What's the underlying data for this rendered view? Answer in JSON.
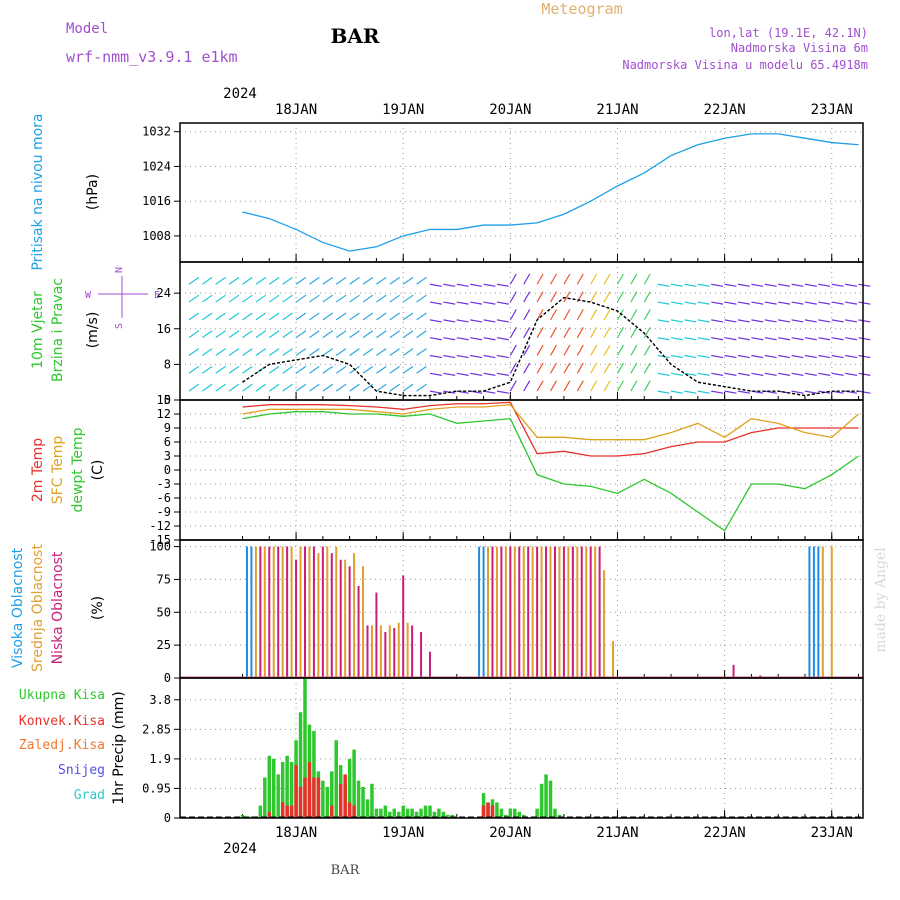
{
  "header": {
    "model_label": "Model",
    "model_name": "wrf-nmm_v3.9.1  e1km",
    "station": "BAR",
    "title": "Meteogram",
    "lonlat": "lon,lat (19.1E, 42.1N)",
    "elevation": "Nadmorska Visina 6m",
    "model_elevation": "Nadmorska Visina u modelu 65.4918m"
  },
  "footer": {
    "station": "BAR",
    "credit": "made by Angel"
  },
  "time_axis": {
    "year": "2024",
    "days": [
      "18JAN",
      "19JAN",
      "20JAN",
      "21JAN",
      "22JAN",
      "23JAN"
    ]
  },
  "colors": {
    "pressure": "#1ea0e6",
    "temp2m": "#e6322a",
    "sfc": "#e0a020",
    "dew": "#2ec82e",
    "high": "#1e8ce6",
    "mid": "#e0a030",
    "low": "#c81e78",
    "precip_total": "#2ec82e",
    "precip_conv": "#e6322a",
    "purple": "#a050d0"
  },
  "labels": {
    "p1": {
      "name": "Pritisak na nivou mora",
      "unit": "(hPa)"
    },
    "p2": {
      "line1": "10m Vjetar",
      "line2": "Brzina i Pravac",
      "unit": "(m/s)",
      "compass_n": "N",
      "compass_w": "W",
      "compass_e": "E",
      "compass_s": "S"
    },
    "p3": {
      "l1": "2m Temp",
      "l2": "SFC Temp",
      "l3": "dewpt Temp",
      "unit": "(C)"
    },
    "p4": {
      "l1": "Visoka Oblacnost",
      "l2": "Srednja Oblacnost",
      "l3": "Niska Oblacnost",
      "unit": "(%)"
    },
    "p5": {
      "unit": "1hr Precip (mm)",
      "leg1": "Ukupna Kisa",
      "leg2": "Konvek.Kisa",
      "leg3": "Zaledj.Kisa",
      "leg4": "Snijeg",
      "leg5": "Grad"
    }
  },
  "chart_data": [
    {
      "type": "line",
      "name": "Pritisak na nivou mora",
      "ylabel": "(hPa)",
      "ylim": [
        1002,
        1034
      ],
      "yticks": [
        "1008",
        "1016",
        "1024",
        "1032"
      ],
      "x_hours": [
        0,
        6,
        12,
        18,
        24,
        30,
        36,
        42,
        48,
        54,
        60,
        66,
        72,
        78,
        84,
        90,
        96,
        102,
        108,
        114,
        120,
        126,
        132,
        138
      ],
      "series": [
        {
          "values": [
            1013.5,
            1012,
            1009.5,
            1006.5,
            1004.5,
            1005.5,
            1008,
            1009.5,
            1009.5,
            1010.5,
            1010.5,
            1011,
            1013,
            1016,
            1019.5,
            1022.5,
            1026.5,
            1029,
            1030.5,
            1031.5,
            1031.5,
            1030.5,
            1029.5,
            1029
          ]
        }
      ]
    },
    {
      "type": "line",
      "name": "10m Vjetar",
      "ylabel": "(m/s)",
      "ylim": [
        0,
        31
      ],
      "yticks": [
        "0",
        "8",
        "16",
        "24"
      ],
      "x_hours": [
        0,
        6,
        12,
        18,
        24,
        30,
        36,
        42,
        48,
        54,
        60,
        66,
        72,
        78,
        84,
        90,
        96,
        102,
        108,
        114,
        120,
        126,
        132,
        138
      ],
      "series": [
        {
          "values": [
            4,
            8,
            9,
            10,
            8,
            2,
            1,
            1,
            2,
            2,
            4,
            18,
            23,
            22,
            20,
            15,
            8,
            4,
            3,
            2,
            2,
            1,
            2,
            2
          ]
        }
      ]
    },
    {
      "type": "line",
      "name": "Temperatures",
      "ylabel": "(C)",
      "ylim": [
        -15,
        15
      ],
      "yticks": [
        "15",
        "12",
        "9",
        "6",
        "3",
        "0",
        "-3",
        "-6",
        "-9",
        "-12",
        "-15"
      ],
      "x_hours": [
        0,
        6,
        12,
        18,
        24,
        30,
        36,
        42,
        48,
        54,
        60,
        66,
        72,
        78,
        84,
        90,
        96,
        102,
        108,
        114,
        120,
        126,
        132,
        138
      ],
      "series": [
        {
          "name": "2m Temp",
          "values": [
            13.5,
            14,
            14,
            14,
            13.8,
            13.5,
            13,
            13.8,
            14.2,
            14.2,
            14.5,
            3.5,
            4,
            3,
            3,
            3.5,
            5,
            6,
            6,
            8,
            9,
            9,
            9,
            9
          ]
        },
        {
          "name": "SFC Temp",
          "values": [
            12,
            13,
            13,
            13,
            13,
            12.5,
            12,
            13,
            13.5,
            13.5,
            14,
            7,
            7,
            6.5,
            6.5,
            6.5,
            8,
            10,
            7,
            11,
            10,
            8,
            7,
            12
          ]
        },
        {
          "name": "dewpt Temp",
          "values": [
            11,
            12,
            12.5,
            12.5,
            12,
            12,
            11.5,
            12,
            10,
            10.5,
            11,
            -1,
            -3,
            -3.5,
            -5,
            -2,
            -5,
            -9,
            -13,
            -3,
            -3,
            -4,
            -1,
            3
          ]
        }
      ]
    },
    {
      "type": "bar",
      "name": "Oblacnost",
      "ylabel": "(%)",
      "ylim": [
        0,
        105
      ],
      "yticks": [
        "0",
        "25",
        "50",
        "75",
        "100"
      ],
      "series": [
        {
          "name": "Visoka Oblacnost",
          "values": [
            [
              1,
              100
            ],
            [
              2,
              100
            ],
            [
              53,
              100
            ],
            [
              54,
              100
            ],
            [
              127,
              100
            ],
            [
              128,
              100
            ],
            [
              129,
              100
            ]
          ]
        },
        {
          "name": "Srednja Oblacnost",
          "values": [
            [
              3,
              100
            ],
            [
              5,
              100
            ],
            [
              7,
              100
            ],
            [
              9,
              100
            ],
            [
              11,
              100
            ],
            [
              13,
              100
            ],
            [
              15,
              100
            ],
            [
              17,
              95
            ],
            [
              19,
              100
            ],
            [
              21,
              100
            ],
            [
              23,
              90
            ],
            [
              25,
              95
            ],
            [
              27,
              85
            ],
            [
              29,
              40
            ],
            [
              31,
              40
            ],
            [
              33,
              40
            ],
            [
              35,
              42
            ],
            [
              37,
              42
            ],
            [
              55,
              100
            ],
            [
              57,
              100
            ],
            [
              59,
              100
            ],
            [
              61,
              100
            ],
            [
              63,
              100
            ],
            [
              65,
              100
            ],
            [
              67,
              100
            ],
            [
              69,
              100
            ],
            [
              71,
              100
            ],
            [
              73,
              100
            ],
            [
              75,
              100
            ],
            [
              77,
              100
            ],
            [
              79,
              100
            ],
            [
              81,
              82
            ],
            [
              83,
              28
            ],
            [
              130,
              100
            ],
            [
              132,
              100
            ]
          ]
        },
        {
          "name": "Niska Oblacnost",
          "values": [
            [
              4,
              100
            ],
            [
              6,
              100
            ],
            [
              8,
              100
            ],
            [
              10,
              100
            ],
            [
              12,
              90
            ],
            [
              14,
              100
            ],
            [
              16,
              100
            ],
            [
              18,
              100
            ],
            [
              20,
              95
            ],
            [
              22,
              90
            ],
            [
              24,
              85
            ],
            [
              26,
              70
            ],
            [
              28,
              40
            ],
            [
              30,
              65
            ],
            [
              32,
              35
            ],
            [
              34,
              38
            ],
            [
              36,
              78
            ],
            [
              38,
              40
            ],
            [
              40,
              35
            ],
            [
              42,
              20
            ],
            [
              56,
              100
            ],
            [
              58,
              100
            ],
            [
              60,
              100
            ],
            [
              62,
              100
            ],
            [
              64,
              100
            ],
            [
              66,
              100
            ],
            [
              68,
              100
            ],
            [
              70,
              100
            ],
            [
              72,
              100
            ],
            [
              74,
              100
            ],
            [
              76,
              100
            ],
            [
              78,
              100
            ],
            [
              80,
              100
            ],
            [
              110,
              10
            ],
            [
              116,
              2
            ]
          ]
        }
      ]
    },
    {
      "type": "bar",
      "name": "1hr Precip",
      "ylabel": "1hr Precip (mm)",
      "ylim": [
        0,
        4.5
      ],
      "yticks": [
        "0",
        "0.95",
        "1.9",
        "2.85",
        "3.8"
      ],
      "series": [
        {
          "name": "Ukupna Kisa",
          "values": [
            [
              0,
              0.1
            ],
            [
              2,
              0.05
            ],
            [
              4,
              0.4
            ],
            [
              5,
              1.3
            ],
            [
              6,
              2.0
            ],
            [
              7,
              1.9
            ],
            [
              8,
              1.4
            ],
            [
              9,
              1.8
            ],
            [
              10,
              2.0
            ],
            [
              11,
              1.8
            ],
            [
              12,
              2.5
            ],
            [
              13,
              3.4
            ],
            [
              14,
              4.5
            ],
            [
              15,
              3.0
            ],
            [
              16,
              2.8
            ],
            [
              17,
              1.5
            ],
            [
              18,
              1.2
            ],
            [
              19,
              1.0
            ],
            [
              20,
              1.5
            ],
            [
              21,
              2.5
            ],
            [
              22,
              1.7
            ],
            [
              23,
              1.1
            ],
            [
              24,
              1.9
            ],
            [
              25,
              2.2
            ],
            [
              26,
              1.2
            ],
            [
              27,
              1.0
            ],
            [
              28,
              0.6
            ],
            [
              29,
              1.1
            ],
            [
              30,
              0.3
            ],
            [
              31,
              0.3
            ],
            [
              32,
              0.4
            ],
            [
              33,
              0.2
            ],
            [
              34,
              0.3
            ],
            [
              35,
              0.2
            ],
            [
              36,
              0.4
            ],
            [
              37,
              0.3
            ],
            [
              38,
              0.3
            ],
            [
              39,
              0.2
            ],
            [
              40,
              0.3
            ],
            [
              41,
              0.4
            ],
            [
              42,
              0.4
            ],
            [
              43,
              0.2
            ],
            [
              44,
              0.3
            ],
            [
              45,
              0.2
            ],
            [
              46,
              0.1
            ],
            [
              47,
              0.1
            ],
            [
              54,
              0.8
            ],
            [
              55,
              0.5
            ],
            [
              56,
              0.6
            ],
            [
              57,
              0.5
            ],
            [
              58,
              0.3
            ],
            [
              59,
              0.1
            ],
            [
              60,
              0.3
            ],
            [
              61,
              0.3
            ],
            [
              62,
              0.2
            ],
            [
              63,
              0.1
            ],
            [
              66,
              0.3
            ],
            [
              67,
              1.1
            ],
            [
              68,
              1.4
            ],
            [
              69,
              1.2
            ],
            [
              70,
              0.3
            ],
            [
              71,
              0.1
            ]
          ]
        },
        {
          "name": "Konvek.Kisa",
          "values": [
            [
              6,
              0.2
            ],
            [
              9,
              0.5
            ],
            [
              10,
              0.4
            ],
            [
              11,
              0.4
            ],
            [
              12,
              1.7
            ],
            [
              13,
              1.0
            ],
            [
              14,
              1.3
            ],
            [
              15,
              1.8
            ],
            [
              16,
              1.3
            ],
            [
              17,
              1.3
            ],
            [
              20,
              0.4
            ],
            [
              22,
              1.1
            ],
            [
              23,
              1.4
            ],
            [
              24,
              0.5
            ],
            [
              25,
              0.4
            ],
            [
              54,
              0.4
            ],
            [
              55,
              0.5
            ],
            [
              56,
              0.4
            ]
          ]
        }
      ]
    }
  ]
}
